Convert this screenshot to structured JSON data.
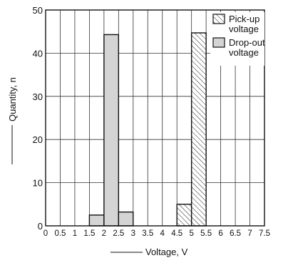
{
  "chart_data": {
    "type": "bar",
    "title": "",
    "xlabel": "Voltage, V",
    "ylabel": "Quantity, n",
    "xlim": [
      0,
      7.5
    ],
    "ylim": [
      0,
      50
    ],
    "xticks": [
      0,
      0.5,
      1,
      1.5,
      2,
      2.5,
      3,
      3.5,
      4,
      4.5,
      5,
      5.5,
      6,
      6.5,
      7,
      7.5
    ],
    "xtick_labels": [
      "0",
      "0.5",
      "1",
      "1.5",
      "2",
      "2.5",
      "3",
      "3.5",
      "4",
      "4.5",
      "5",
      "5.5",
      "6",
      "6.5",
      "7",
      "7.5"
    ],
    "yticks": [
      0,
      10,
      20,
      30,
      40,
      50
    ],
    "ytick_labels": [
      "0",
      "10",
      "20",
      "30",
      "40",
      "50"
    ],
    "grid": true,
    "legend_position": "top-right",
    "bin_width": 0.5,
    "series": [
      {
        "name": "Drop-out voltage",
        "legend_lines": [
          "Drop-out",
          "voltage"
        ],
        "fill": "#d4d4d4",
        "pattern": "solid",
        "bins": [
          {
            "x0": 1.5,
            "x1": 2.0,
            "value": 2.5
          },
          {
            "x0": 2.0,
            "x1": 2.5,
            "value": 44.3
          },
          {
            "x0": 2.5,
            "x1": 3.0,
            "value": 3.2
          }
        ]
      },
      {
        "name": "Pick-up voltage",
        "legend_lines": [
          "Pick-up",
          "voltage"
        ],
        "fill": "#ffffff",
        "pattern": "hatch",
        "bins": [
          {
            "x0": 4.5,
            "x1": 5.0,
            "value": 5.0
          },
          {
            "x0": 5.0,
            "x1": 5.5,
            "value": 44.7
          }
        ]
      }
    ]
  }
}
